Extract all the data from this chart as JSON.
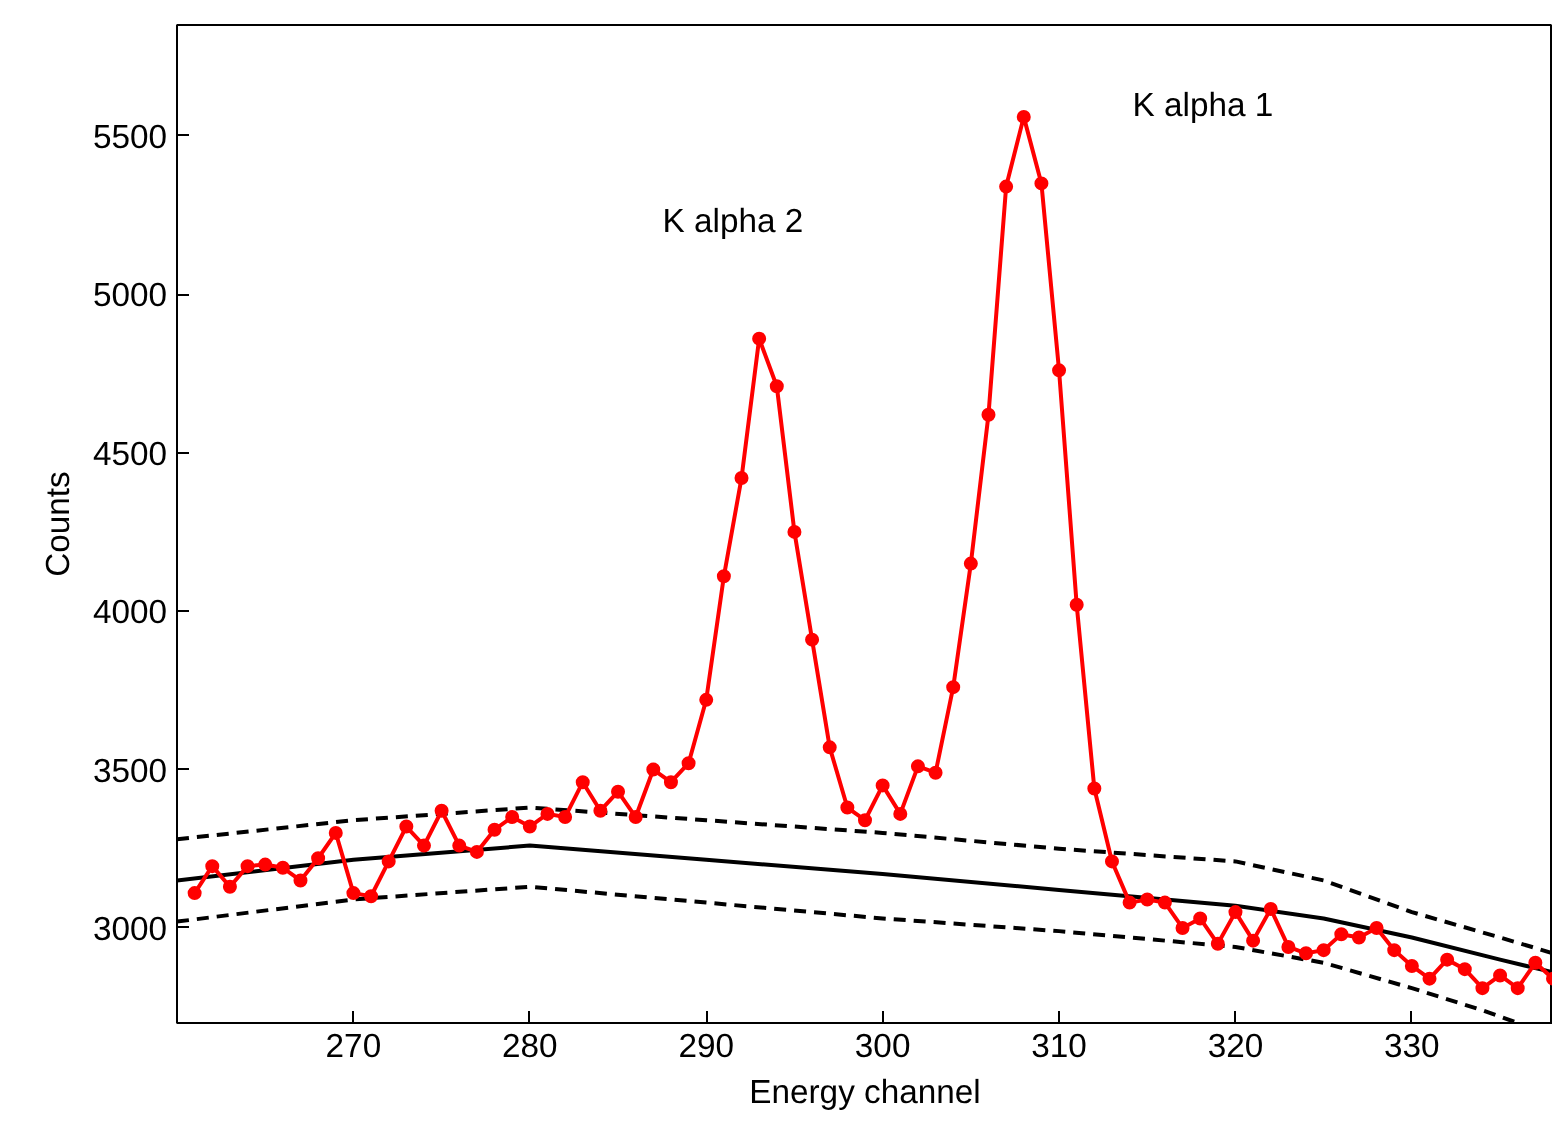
{
  "chart_data": {
    "type": "line",
    "xlabel": "Energy channel",
    "ylabel": "Counts",
    "xlim": [
      260,
      338
    ],
    "ylim": [
      2700,
      5850
    ],
    "xticks": [
      270,
      280,
      290,
      300,
      310,
      320,
      330
    ],
    "yticks": [
      3000,
      3500,
      4000,
      4500,
      5000,
      5500
    ],
    "grid": false,
    "annotations": [
      "K alpha 2",
      "K alpha 1"
    ],
    "series": [
      {
        "color": "#000000",
        "line_style": "dashed",
        "marker": "none",
        "x": [
          260,
          270,
          280,
          290,
          300,
          310,
          320,
          325,
          330,
          335,
          338
        ],
        "values": [
          3280,
          3340,
          3380,
          3340,
          3300,
          3250,
          3210,
          3150,
          3050,
          2970,
          2920
        ]
      },
      {
        "color": "#000000",
        "line_style": "solid",
        "marker": "none",
        "x": [
          260,
          270,
          280,
          290,
          300,
          310,
          320,
          325,
          330,
          335,
          338
        ],
        "values": [
          3150,
          3215,
          3260,
          3215,
          3170,
          3120,
          3070,
          3030,
          2970,
          2900,
          2860
        ]
      },
      {
        "color": "#000000",
        "line_style": "dashed",
        "marker": "none",
        "x": [
          260,
          270,
          280,
          290,
          300,
          310,
          320,
          325,
          330,
          334,
          336
        ],
        "values": [
          3020,
          3090,
          3130,
          3080,
          3030,
          2990,
          2940,
          2890,
          2810,
          2740,
          2700
        ]
      },
      {
        "color": "#ff0000",
        "line_style": "solid",
        "marker": "circle",
        "x": [
          261,
          262,
          263,
          264,
          265,
          266,
          267,
          268,
          269,
          270,
          271,
          272,
          273,
          274,
          275,
          276,
          277,
          278,
          279,
          280,
          281,
          282,
          283,
          284,
          285,
          286,
          287,
          288,
          289,
          290,
          291,
          292,
          293,
          294,
          295,
          296,
          297,
          298,
          299,
          300,
          301,
          302,
          303,
          304,
          305,
          306,
          307,
          308,
          309,
          310,
          311,
          312,
          313,
          314,
          315,
          316,
          317,
          318,
          319,
          320,
          321,
          322,
          323,
          324,
          325,
          326,
          327,
          328,
          329,
          330,
          331,
          332,
          333,
          334,
          335,
          336,
          337,
          338
        ],
        "values": [
          3110,
          3195,
          3130,
          3195,
          3200,
          3190,
          3150,
          3220,
          3300,
          3110,
          3100,
          3210,
          3320,
          3260,
          3370,
          3260,
          3240,
          3310,
          3350,
          3320,
          3360,
          3350,
          3460,
          3370,
          3430,
          3350,
          3500,
          3460,
          3520,
          3720,
          4110,
          4420,
          4860,
          4710,
          4250,
          3910,
          3570,
          3380,
          3340,
          3450,
          3360,
          3510,
          3490,
          3760,
          4150,
          4620,
          5340,
          5560,
          5350,
          4760,
          4020,
          3440,
          3210,
          3080,
          3090,
          3080,
          3000,
          3030,
          2950,
          3050,
          2960,
          3060,
          2940,
          2920,
          2930,
          2980,
          2970,
          3000,
          2930,
          2880,
          2840,
          2900,
          2870,
          2810,
          2850,
          2810,
          2890,
          2840
        ]
      }
    ]
  }
}
